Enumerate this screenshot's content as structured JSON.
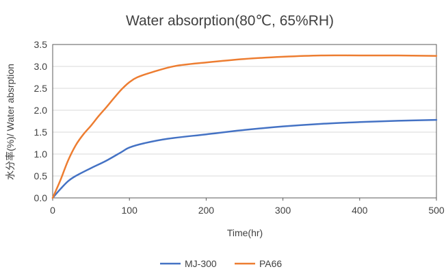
{
  "chart_data": {
    "type": "line",
    "title": "Water absorption(80℃, 65%RH)",
    "xlabel": "Time(hr)",
    "ylabel": "水分率(%)/ Water absrption",
    "xlim": [
      0,
      500
    ],
    "ylim": [
      0,
      3.5
    ],
    "xticks": [
      "0",
      "100",
      "200",
      "300",
      "400",
      "500"
    ],
    "yticks": [
      "0.0",
      "0.5",
      "1.0",
      "1.5",
      "2.0",
      "2.5",
      "3.0",
      "3.5"
    ],
    "grid": "horizontal",
    "legend_position": "bottom",
    "series": [
      {
        "name": "MJ-300",
        "color": "#4472C4",
        "x": [
          0,
          10,
          20,
          30,
          50,
          70,
          90,
          100,
          120,
          150,
          200,
          250,
          300,
          350,
          400,
          450,
          500
        ],
        "y": [
          0,
          0.2,
          0.38,
          0.5,
          0.68,
          0.85,
          1.05,
          1.15,
          1.25,
          1.35,
          1.45,
          1.55,
          1.63,
          1.69,
          1.73,
          1.76,
          1.78
        ]
      },
      {
        "name": "PA66",
        "color": "#ED7D31",
        "x": [
          0,
          10,
          20,
          30,
          40,
          50,
          60,
          70,
          80,
          90,
          100,
          110,
          130,
          160,
          200,
          250,
          300,
          350,
          400,
          450,
          500
        ],
        "y": [
          0,
          0.4,
          0.85,
          1.2,
          1.45,
          1.65,
          1.87,
          2.07,
          2.28,
          2.48,
          2.64,
          2.75,
          2.87,
          3.01,
          3.09,
          3.17,
          3.22,
          3.25,
          3.25,
          3.25,
          3.24
        ]
      }
    ]
  }
}
